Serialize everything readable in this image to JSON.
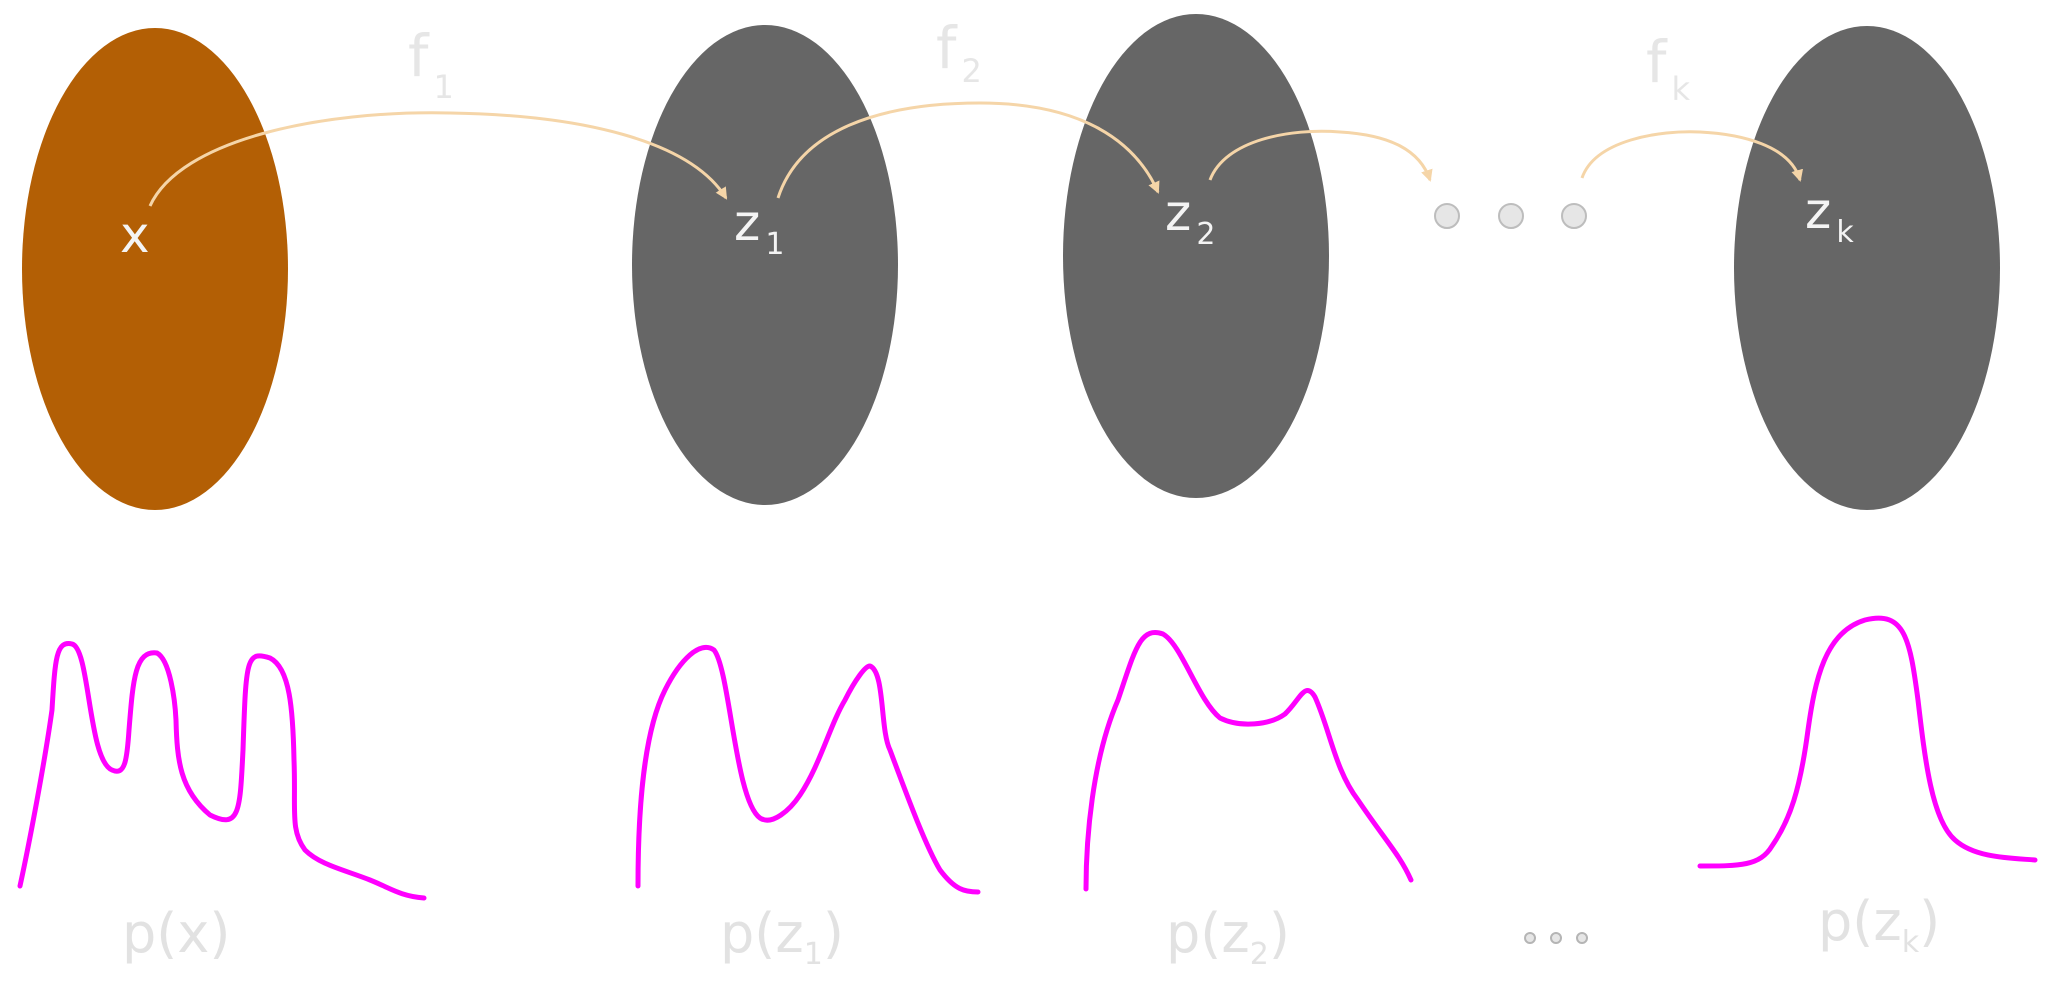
{
  "nodes": [
    {
      "id": "x",
      "base": "x",
      "sub": "",
      "color": "#b35f05"
    },
    {
      "id": "z1",
      "base": "z",
      "sub": "1",
      "color": "#666666"
    },
    {
      "id": "z2",
      "base": "z",
      "sub": "2",
      "color": "#666666"
    },
    {
      "id": "zk",
      "base": "z",
      "sub": "k",
      "color": "#666666"
    }
  ],
  "functions": [
    {
      "base": "f",
      "sub": "1"
    },
    {
      "base": "f",
      "sub": "2"
    },
    {
      "base": "f",
      "sub": "k"
    }
  ],
  "distributions": [
    {
      "open": "p(",
      "base": "x",
      "sub": "",
      "close": ")"
    },
    {
      "open": "p(",
      "base": "z",
      "sub": "1",
      "close": ")"
    },
    {
      "open": "p(",
      "base": "z",
      "sub": "2",
      "close": ")"
    },
    {
      "open": "p(",
      "base": "z",
      "sub": "k",
      "close": ")"
    }
  ],
  "colors": {
    "arrow": "#f5d5a8",
    "curve": "#ff00ff",
    "label": "#e4e4e4"
  }
}
